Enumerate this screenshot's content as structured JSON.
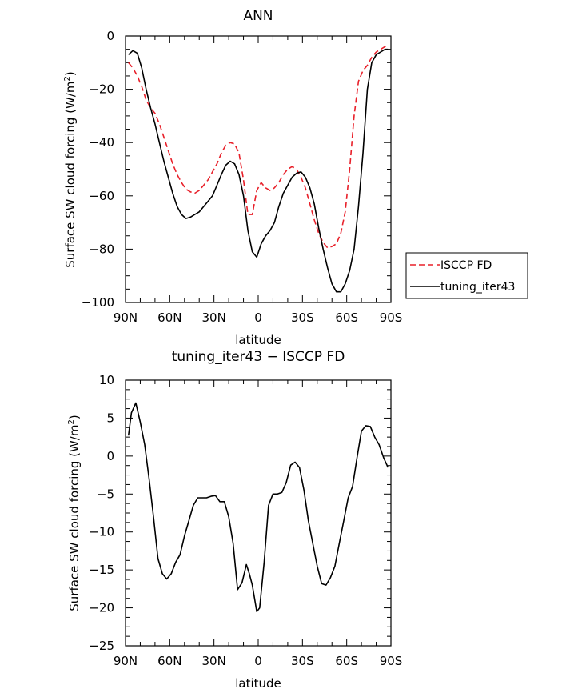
{
  "chart_data": [
    {
      "type": "line",
      "title": "ANN",
      "xlabel": "latitude",
      "ylabel": "Surface SW cloud forcing (W/m",
      "ylabel_sup": "2",
      "ylabel_close": ")",
      "xlim": [
        90,
        -90
      ],
      "ylim": [
        -100,
        0
      ],
      "xticks": [
        90,
        60,
        30,
        0,
        -30,
        -60,
        -90
      ],
      "xtick_labels": [
        "90N",
        "60N",
        "30N",
        "0",
        "30S",
        "60S",
        "90S"
      ],
      "yticks": [
        0,
        -20,
        -40,
        -60,
        -80,
        -100
      ],
      "ytick_labels": [
        "0",
        "−20",
        "−40",
        "−60",
        "−80",
        "−100"
      ],
      "legend": "right",
      "series": [
        {
          "name": "ISCCP FD",
          "color": "#e8202a",
          "dash": "dashed",
          "x": [
            88,
            85,
            82,
            79,
            76,
            73,
            70,
            67,
            64,
            61,
            58,
            55,
            52,
            49,
            46,
            43,
            40,
            37,
            34,
            31,
            28,
            25,
            22,
            19,
            16,
            13,
            10,
            7,
            4,
            1,
            -2,
            -5,
            -8,
            -11,
            -14,
            -17,
            -20,
            -23,
            -26,
            -29,
            -32,
            -35,
            -38,
            -41,
            -44,
            -47,
            -50,
            -53,
            -56,
            -59,
            -62,
            -65,
            -68,
            -71,
            -74,
            -77,
            -80,
            -83,
            -86,
            -88
          ],
          "values": [
            -10,
            -12,
            -15,
            -19,
            -24,
            -27,
            -29,
            -33,
            -38,
            -43,
            -48,
            -52,
            -55,
            -57.5,
            -58.5,
            -59,
            -58,
            -56,
            -54,
            -51,
            -48,
            -44,
            -41,
            -40,
            -40.5,
            -44,
            -54,
            -67,
            -67,
            -58,
            -55,
            -57,
            -58,
            -57,
            -55,
            -52,
            -50,
            -49,
            -50,
            -53,
            -57,
            -63,
            -69,
            -74,
            -77.5,
            -79.5,
            -79,
            -78,
            -74,
            -66,
            -50,
            -30,
            -17,
            -13,
            -11,
            -8,
            -6,
            -5,
            -4,
            -3.5
          ]
        },
        {
          "name": "tuning_iter43",
          "color": "#000000",
          "dash": "solid",
          "x": [
            88,
            85,
            82,
            79,
            76,
            73,
            70,
            67,
            64,
            61,
            58,
            55,
            52,
            49,
            46,
            43,
            40,
            37,
            34,
            31,
            28,
            25,
            22,
            19,
            16,
            13,
            10,
            7,
            4,
            1,
            -2,
            -5,
            -8,
            -11,
            -14,
            -17,
            -20,
            -23,
            -26,
            -29,
            -32,
            -35,
            -38,
            -41,
            -44,
            -47,
            -50,
            -53,
            -56,
            -59,
            -62,
            -65,
            -68,
            -71,
            -74,
            -77,
            -80,
            -83,
            -86,
            -88
          ],
          "values": [
            -7,
            -5.5,
            -6.5,
            -12,
            -20,
            -27,
            -33,
            -40,
            -47,
            -53,
            -59,
            -64,
            -67,
            -68.5,
            -68,
            -67,
            -66,
            -64,
            -62,
            -60,
            -56,
            -52,
            -48.5,
            -47,
            -48,
            -52,
            -60,
            -73,
            -81,
            -83,
            -78,
            -75,
            -73,
            -70,
            -64,
            -59,
            -56,
            -53,
            -51.5,
            -51,
            -53,
            -57,
            -63,
            -72,
            -80,
            -87,
            -93,
            -96,
            -96,
            -93,
            -88,
            -80,
            -64,
            -44,
            -20,
            -10,
            -7,
            -6,
            -5,
            -5
          ]
        }
      ]
    },
    {
      "type": "line",
      "title": "tuning_iter43 − ISCCP FD",
      "xlabel": "latitude",
      "ylabel": "Surface SW cloud forcing (W/m",
      "ylabel_sup": "2",
      "ylabel_close": ")",
      "xlim": [
        90,
        -90
      ],
      "ylim": [
        -25,
        10
      ],
      "xticks": [
        90,
        60,
        30,
        0,
        -30,
        -60,
        -90
      ],
      "xtick_labels": [
        "90N",
        "60N",
        "30N",
        "0",
        "30S",
        "60S",
        "90S"
      ],
      "yticks": [
        10,
        5,
        0,
        -5,
        -10,
        -15,
        -20,
        -25
      ],
      "ytick_labels": [
        "10",
        "5",
        "0",
        "−5",
        "−10",
        "−15",
        "−20",
        "−25"
      ],
      "series": [
        {
          "color": "#000000",
          "dash": "solid",
          "x": [
            88,
            86,
            83,
            80,
            77,
            74,
            71,
            68,
            65,
            62,
            59,
            56,
            53,
            50,
            47,
            44,
            41,
            38,
            35,
            32,
            29,
            26,
            23,
            20,
            17,
            14,
            11,
            8,
            6,
            4,
            1,
            -1,
            -4,
            -7,
            -10,
            -13,
            -16,
            -19,
            -22,
            -25,
            -28,
            -31,
            -34,
            -37,
            -40,
            -43,
            -46,
            -49,
            -52,
            -55,
            -58,
            -61,
            -64,
            -67,
            -70,
            -73,
            -76,
            -79,
            -82,
            -85,
            -88
          ],
          "values": [
            2.7,
            5.7,
            7,
            4.5,
            1.5,
            -3,
            -8,
            -13.5,
            -15.5,
            -16.2,
            -15.5,
            -14,
            -13,
            -10.5,
            -8.5,
            -6.5,
            -5.5,
            -5.5,
            -5.5,
            -5.3,
            -5.2,
            -6,
            -6,
            -8,
            -11.5,
            -17.6,
            -16.7,
            -14.3,
            -15.5,
            -17,
            -20.5,
            -20,
            -14,
            -6.5,
            -5,
            -5,
            -4.8,
            -3.5,
            -1.2,
            -0.8,
            -1.5,
            -4.5,
            -8.5,
            -11.5,
            -14.5,
            -16.8,
            -17,
            -16,
            -14.5,
            -11.5,
            -8.5,
            -5.5,
            -4,
            -0.2,
            3.3,
            4,
            3.9,
            2.5,
            1.5,
            -0.2,
            -1.5
          ]
        }
      ]
    }
  ]
}
